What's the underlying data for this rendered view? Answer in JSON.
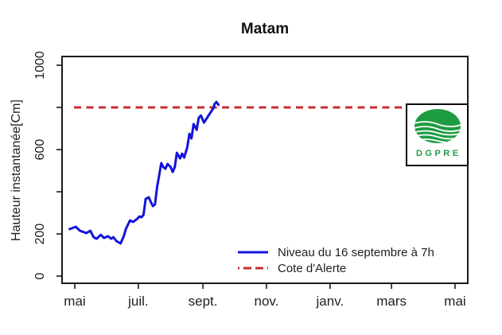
{
  "title": "Matam",
  "chart_data": {
    "type": "line",
    "title": "Matam",
    "xlabel": "",
    "ylabel": "Hauteur instantanée[Cm]",
    "ylim": [
      0,
      1050
    ],
    "grid": false,
    "legend_position": "inside-bottom-right",
    "x_ticks": [
      {
        "day": 0,
        "label": "mai"
      },
      {
        "day": 61,
        "label": "juil."
      },
      {
        "day": 123,
        "label": "sept."
      },
      {
        "day": 184,
        "label": "nov."
      },
      {
        "day": 245,
        "label": "janv."
      },
      {
        "day": 304,
        "label": "mars"
      },
      {
        "day": 365,
        "label": "mai"
      }
    ],
    "y_ticks": [
      {
        "value": 0,
        "label": "0"
      },
      {
        "value": 200,
        "label": "200"
      },
      {
        "value": 400,
        "label": ""
      },
      {
        "value": 600,
        "label": "600"
      },
      {
        "value": 800,
        "label": ""
      },
      {
        "value": 1000,
        "label": "1000"
      }
    ],
    "alert_level_cm": 800,
    "series": [
      {
        "name": "Niveau du 16 septembre à 7h",
        "type": "line",
        "style": "solid",
        "color": "#1414DC",
        "x_unit": "days-from-1-mai",
        "points": [
          [
            -5,
            223
          ],
          [
            1,
            234
          ],
          [
            5,
            215
          ],
          [
            8,
            210
          ],
          [
            11,
            204
          ],
          [
            15,
            215
          ],
          [
            18,
            185
          ],
          [
            21,
            177
          ],
          [
            25,
            196
          ],
          [
            28,
            181
          ],
          [
            32,
            189
          ],
          [
            35,
            177
          ],
          [
            37,
            185
          ],
          [
            40,
            166
          ],
          [
            44,
            155
          ],
          [
            47,
            189
          ],
          [
            49,
            223
          ],
          [
            53,
            264
          ],
          [
            56,
            257
          ],
          [
            60,
            272
          ],
          [
            62,
            283
          ],
          [
            64,
            279
          ],
          [
            66,
            291
          ],
          [
            68,
            366
          ],
          [
            71,
            374
          ],
          [
            73,
            351
          ],
          [
            75,
            332
          ],
          [
            77,
            340
          ],
          [
            79,
            423
          ],
          [
            81,
            479
          ],
          [
            83,
            536
          ],
          [
            85,
            517
          ],
          [
            87,
            509
          ],
          [
            89,
            532
          ],
          [
            92,
            517
          ],
          [
            94,
            494
          ],
          [
            96,
            517
          ],
          [
            98,
            585
          ],
          [
            101,
            558
          ],
          [
            103,
            581
          ],
          [
            105,
            562
          ],
          [
            108,
            611
          ],
          [
            110,
            675
          ],
          [
            112,
            653
          ],
          [
            114,
            721
          ],
          [
            117,
            694
          ],
          [
            119,
            751
          ],
          [
            121,
            762
          ],
          [
            124,
            728
          ],
          [
            126,
            743
          ],
          [
            128,
            758
          ],
          [
            130,
            774
          ],
          [
            133,
            796
          ],
          [
            134,
            815
          ],
          [
            136,
            826
          ],
          [
            138,
            812
          ]
        ]
      },
      {
        "name": "Cote d'Alerte",
        "type": "hline",
        "style": "dashed",
        "color": "#CB2B2B",
        "value": 800
      }
    ]
  },
  "legend": {
    "items": [
      {
        "label": "Niveau du 16 septembre à 7h",
        "color": "#1414DC",
        "style": "solid"
      },
      {
        "label": "Cote d'Alerte",
        "color": "#CB2B2B",
        "style": "dashed"
      }
    ]
  },
  "logo": {
    "text": "DGPRE",
    "green": "#1E9C42"
  },
  "axis_color": "#1a1a1a"
}
